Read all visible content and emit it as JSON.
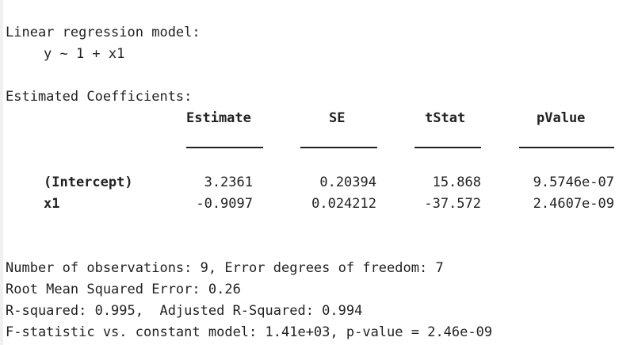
{
  "header": {
    "model_title": "Linear regression model:",
    "formula": "y ~ 1 + x1",
    "coef_title": "Estimated Coefficients:"
  },
  "table": {
    "columns": [
      "Estimate",
      "SE",
      "tStat",
      "pValue"
    ],
    "rows": [
      {
        "name": "(Intercept)",
        "values": [
          "3.2361",
          "0.20394",
          "15.868",
          "9.5746e-07"
        ]
      },
      {
        "name": "x1",
        "values": [
          "-0.9097",
          "0.024212",
          "-37.572",
          "2.4607e-09"
        ]
      }
    ]
  },
  "summary": {
    "line1": "Number of observations: 9, Error degrees of freedom: 7",
    "line2": "Root Mean Squared Error: 0.26",
    "line3": "R-squared: 0.995,  Adjusted R-Squared: 0.994",
    "line4": "F-statistic vs. constant model: 1.41e+03, p-value = 2.46e-09"
  }
}
